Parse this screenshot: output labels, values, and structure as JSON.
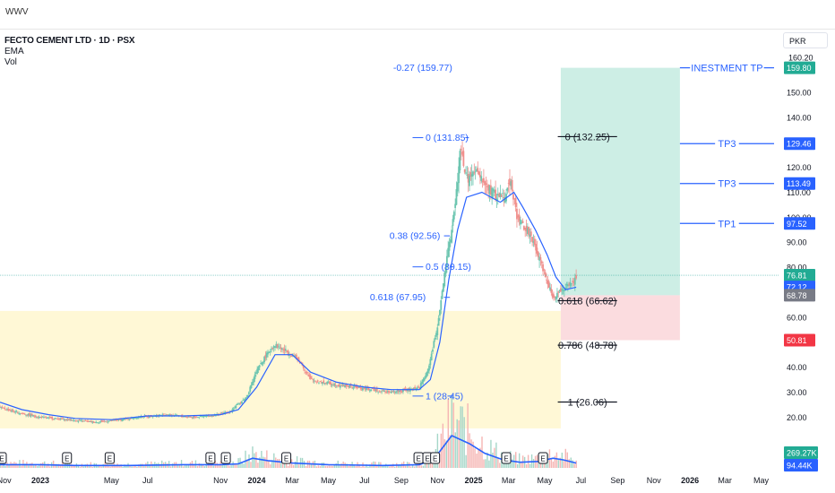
{
  "header": {
    "title": "WWV"
  },
  "legend": {
    "symbol": "FECTO CEMENT LTD · 1D · PSX",
    "ema": "EMA",
    "vol": "Vol"
  },
  "currency": "PKR",
  "colors": {
    "ema": "#2962ff",
    "fib": "#2962ff",
    "black": "#131722",
    "up": "#26a69a",
    "down": "#ef5350",
    "yellow_zone": "#fff8d6",
    "profit_zone": "#cdeee5",
    "loss_zone": "#fbdcdf",
    "price_badge": "#22ab94",
    "ema_badge": "#2962ff",
    "gray_badge": "#787b86",
    "red_badge": "#f23645"
  },
  "chart_data": {
    "type": "candlestick",
    "x_tick_labels": [
      "Nov",
      "2023",
      "May",
      "Jul",
      "Nov",
      "2024",
      "Mar",
      "May",
      "Jul",
      "Sep",
      "Nov",
      "2025",
      "Mar",
      "May",
      "Jul",
      "Sep",
      "Nov",
      "2026",
      "Mar",
      "May"
    ],
    "y_ticks": [
      20,
      30,
      40,
      50,
      60,
      70,
      80,
      90,
      100,
      110,
      120,
      130,
      140,
      150,
      160
    ],
    "y_tick_labels": [
      "20.00",
      "30.00",
      "40.00",
      "50.00",
      "60.00",
      "70.00",
      "80.00",
      "90.00",
      "100.00",
      "110.00",
      "120.00",
      "130.00",
      "140.00",
      "150.00",
      "160.00"
    ],
    "ylim": [
      14,
      172
    ],
    "price_path": [
      [
        "2022-10-25",
        24
      ],
      [
        "2022-11-20",
        22
      ],
      [
        "2023-01-01",
        20
      ],
      [
        "2023-02-15",
        19
      ],
      [
        "2023-04-01",
        18
      ],
      [
        "2023-05-01",
        18.5
      ],
      [
        "2023-06-15",
        20
      ],
      [
        "2023-08-01",
        21
      ],
      [
        "2023-09-15",
        20
      ],
      [
        "2023-10-15",
        20.5
      ],
      [
        "2023-11-15",
        22
      ],
      [
        "2023-12-15",
        28
      ],
      [
        "2023-12-31",
        38
      ],
      [
        "2024-01-15",
        44
      ],
      [
        "2024-01-31",
        49
      ],
      [
        "2024-02-15",
        47
      ],
      [
        "2024-03-01",
        45
      ],
      [
        "2024-03-15",
        42
      ],
      [
        "2024-04-01",
        35
      ],
      [
        "2024-04-20",
        34
      ],
      [
        "2024-05-15",
        33
      ],
      [
        "2024-06-15",
        32
      ],
      [
        "2024-07-15",
        31
      ],
      [
        "2024-08-15",
        30
      ],
      [
        "2024-09-15",
        31
      ],
      [
        "2024-10-01",
        32
      ],
      [
        "2024-10-15",
        38
      ],
      [
        "2024-10-31",
        55
      ],
      [
        "2024-11-15",
        80
      ],
      [
        "2024-12-01",
        105
      ],
      [
        "2024-12-10",
        128
      ],
      [
        "2024-12-20",
        115
      ],
      [
        "2025-01-05",
        118
      ],
      [
        "2025-01-20",
        113
      ],
      [
        "2025-02-10",
        108
      ],
      [
        "2025-02-25",
        110
      ],
      [
        "2025-03-05",
        115
      ],
      [
        "2025-03-15",
        100
      ],
      [
        "2025-04-01",
        95
      ],
      [
        "2025-04-20",
        85
      ],
      [
        "2025-05-05",
        75
      ],
      [
        "2025-05-15",
        68
      ],
      [
        "2025-05-25",
        70
      ],
      [
        "2025-06-05",
        72
      ],
      [
        "2025-06-15",
        73
      ],
      [
        "2025-06-23",
        76
      ]
    ],
    "ema_path": [
      [
        "2022-10-25",
        26
      ],
      [
        "2022-12-01",
        23
      ],
      [
        "2023-01-15",
        21
      ],
      [
        "2023-03-01",
        19.5
      ],
      [
        "2023-05-01",
        19
      ],
      [
        "2023-07-01",
        20.5
      ],
      [
        "2023-09-01",
        20.5
      ],
      [
        "2023-11-01",
        21
      ],
      [
        "2023-12-01",
        23
      ],
      [
        "2024-01-01",
        32
      ],
      [
        "2024-02-01",
        45
      ],
      [
        "2024-03-01",
        45
      ],
      [
        "2024-04-01",
        38
      ],
      [
        "2024-05-15",
        34
      ],
      [
        "2024-07-01",
        32
      ],
      [
        "2024-08-15",
        31
      ],
      [
        "2024-10-01",
        31
      ],
      [
        "2024-10-20",
        35
      ],
      [
        "2024-11-05",
        50
      ],
      [
        "2024-11-20",
        75
      ],
      [
        "2024-12-05",
        95
      ],
      [
        "2024-12-20",
        108
      ],
      [
        "2025-01-15",
        110
      ],
      [
        "2025-02-15",
        106
      ],
      [
        "2025-03-10",
        110
      ],
      [
        "2025-03-25",
        104
      ],
      [
        "2025-04-15",
        95
      ],
      [
        "2025-05-05",
        85
      ],
      [
        "2025-05-20",
        76
      ],
      [
        "2025-06-05",
        71
      ],
      [
        "2025-06-23",
        72
      ]
    ],
    "volume_baseline_path": [
      [
        "2022-10-25",
        4
      ],
      [
        "2023-01-01",
        4
      ],
      [
        "2023-03-01",
        3
      ],
      [
        "2023-06-01",
        3
      ],
      [
        "2023-09-01",
        4
      ],
      [
        "2023-11-01",
        4
      ],
      [
        "2023-12-01",
        5
      ],
      [
        "2023-12-25",
        12
      ],
      [
        "2024-01-20",
        9
      ],
      [
        "2024-03-01",
        6
      ],
      [
        "2024-05-01",
        4
      ],
      [
        "2024-08-01",
        3
      ],
      [
        "2024-10-01",
        4
      ],
      [
        "2024-10-25",
        10
      ],
      [
        "2024-11-25",
        40
      ],
      [
        "2024-12-25",
        30
      ],
      [
        "2025-01-20",
        18
      ],
      [
        "2025-02-20",
        10
      ],
      [
        "2025-03-20",
        7
      ],
      [
        "2025-04-20",
        8
      ],
      [
        "2025-05-15",
        12
      ],
      [
        "2025-06-01",
        10
      ],
      [
        "2025-06-23",
        6
      ]
    ],
    "earnings_dates": [
      "2022-10-28",
      "2023-02-15",
      "2023-04-28",
      "2023-10-15",
      "2023-11-10",
      "2024-02-20",
      "2024-09-30",
      "2024-10-15",
      "2024-10-28",
      "2025-02-25",
      "2025-04-28"
    ],
    "earnings_label": "E",
    "zones": {
      "accumulation": {
        "from": "2022-10-25",
        "to": "2025-05-28",
        "low": 15.5,
        "high": 62.5
      },
      "profit": {
        "from": "2025-05-28",
        "to": "2025-12-15",
        "low": 68.78,
        "high": 159.8
      },
      "loss": {
        "from": "2025-05-28",
        "to": "2025-12-15",
        "low": 50.81,
        "high": 68.78
      }
    },
    "fib_left": [
      {
        "label": "-0.27 (159.77)",
        "value": 159.77
      },
      {
        "label": "0 (131.85)",
        "value": 131.85
      },
      {
        "label": "0.38 (92.56)",
        "value": 92.56
      },
      {
        "label": "0.5 (80.15)",
        "value": 80.15
      },
      {
        "label": "0.618 (67.95)",
        "value": 67.95
      },
      {
        "label": "1 (28.45)",
        "value": 28.45
      }
    ],
    "fib_right": [
      {
        "label": "0 (132.25)",
        "value": 132.25
      },
      {
        "label": "0.618 (66.62)",
        "value": 66.62
      },
      {
        "label": "0.786 (48.78)",
        "value": 48.78
      },
      {
        "label": "1 (26.06)",
        "value": 26.06
      }
    ],
    "targets": [
      {
        "label": "INESTMENT TP",
        "value": 159.8,
        "badge": "159.80"
      },
      {
        "label": "TP3",
        "value": 129.46,
        "badge": "129.46"
      },
      {
        "label": "TP3",
        "value": 113.49,
        "badge": "113.49"
      },
      {
        "label": "TP1",
        "value": 97.52,
        "badge": "97.52"
      }
    ],
    "price_badges": [
      {
        "value": 76.81,
        "label": "76.81",
        "color": "price_badge"
      },
      {
        "value": 72.12,
        "label": "72.12",
        "color": "ema_badge"
      },
      {
        "value": 68.78,
        "label": "68.78",
        "color": "gray_badge"
      },
      {
        "value": 50.81,
        "label": "50.81",
        "color": "red_badge"
      }
    ],
    "current_price": 76.81,
    "volume_badges": [
      {
        "label": "269.27K",
        "color": "price_badge"
      },
      {
        "label": "94.44K",
        "color": "ema_badge"
      }
    ],
    "top_axis_label": "160.20"
  }
}
